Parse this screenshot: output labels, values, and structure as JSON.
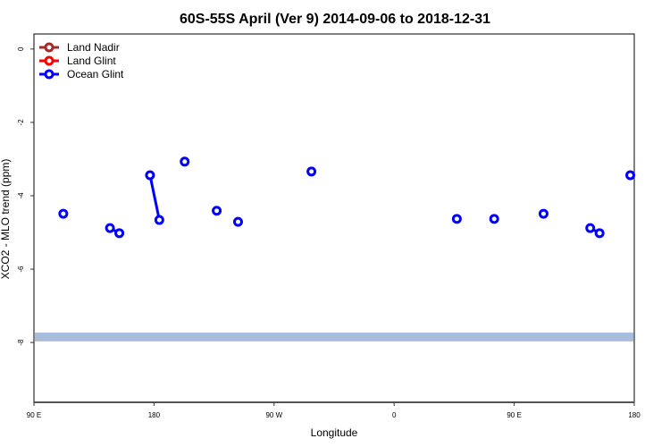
{
  "chart_data": {
    "type": "scatter",
    "title": "60S-55S April (Ver 9)   2014-09-06 to 2018-12-31",
    "xlabel": "Longitude",
    "ylabel": "XCO2 - MLO trend (ppm)",
    "x_tick_labels": [
      "90 E",
      "180",
      "90 W",
      "0",
      "90 E",
      "180"
    ],
    "x_range_deg": [
      90,
      540
    ],
    "y_ticks": [
      0,
      -2,
      -4,
      -6,
      -8
    ],
    "ylim": [
      -9.63,
      0.41
    ],
    "grid": false,
    "legend_placement": "top-left",
    "legend": [
      {
        "name": "Land Nadir",
        "color": "#a52a2a"
      },
      {
        "name": "Land Glint",
        "color": "#ff0000"
      },
      {
        "name": "Ocean Glint",
        "color": "#0000ff"
      }
    ],
    "band": {
      "ymin": -7.97,
      "ymax": -7.73,
      "color": "#a8bcdc"
    },
    "series": [
      {
        "name": "Ocean Glint",
        "color": "#0000ff",
        "points": [
          {
            "lon": 112,
            "y": -4.49
          },
          {
            "lon": 147,
            "y": -4.88
          },
          {
            "lon": 154,
            "y": -5.02
          },
          {
            "lon": 177,
            "y": -3.44
          },
          {
            "lon": -176,
            "y": -4.66
          },
          {
            "lon": -157,
            "y": -3.07
          },
          {
            "lon": -133,
            "y": -4.41
          },
          {
            "lon": -117,
            "y": -4.71
          },
          {
            "lon": -62,
            "y": -3.34
          },
          {
            "lon": 47,
            "y": -4.63
          },
          {
            "lon": 75,
            "y": -4.63
          }
        ],
        "connected_pairs": [
          [
            1,
            2
          ],
          [
            3,
            4
          ]
        ]
      }
    ]
  }
}
